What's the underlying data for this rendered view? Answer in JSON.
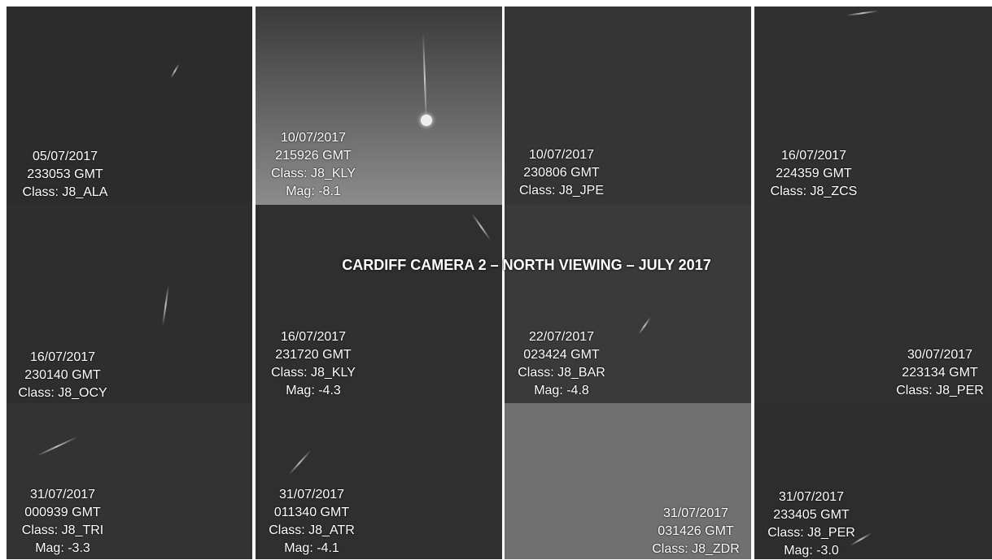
{
  "title": "CARDIFF CAMERA 2 – NORTH VIEWING – JULY 2017",
  "tiles": [
    {
      "date": "05/07/2017",
      "time": "233053 GMT",
      "class": "Class: J8_ALA"
    },
    {
      "date": "10/07/2017",
      "time": "215926 GMT",
      "class": "Class: J8_KLY",
      "mag": "Mag: -8.1"
    },
    {
      "date": "10/07/2017",
      "time": "230806 GMT",
      "class": "Class: J8_JPE"
    },
    {
      "date": "16/07/2017",
      "time": "224359 GMT",
      "class": "Class: J8_ZCS"
    },
    {
      "date": "16/07/2017",
      "time": "230140 GMT",
      "class": "Class: J8_OCY"
    },
    {
      "date": "16/07/2017",
      "time": "231720 GMT",
      "class": "Class: J8_KLY",
      "mag": "Mag: -4.3"
    },
    {
      "date": "22/07/2017",
      "time": "023424 GMT",
      "class": "Class: J8_BAR",
      "mag": "Mag: -4.8"
    },
    {
      "date": "30/07/2017",
      "time": "223134 GMT",
      "class": "Class: J8_PER"
    },
    {
      "date": "31/07/2017",
      "time": "000939 GMT",
      "class": "Class: J8_TRI",
      "mag": "Mag: -3.3"
    },
    {
      "date": "31/07/2017",
      "time": "011340 GMT",
      "class": "Class: J8_ATR",
      "mag": "Mag: -4.1"
    },
    {
      "date": "31/07/2017",
      "time": "031426 GMT",
      "class": "Class: J8_ZDR"
    },
    {
      "date": "31/07/2017",
      "time": "233405 GMT",
      "class": "Class: J8_PER",
      "mag": "Mag: -3.0"
    }
  ]
}
